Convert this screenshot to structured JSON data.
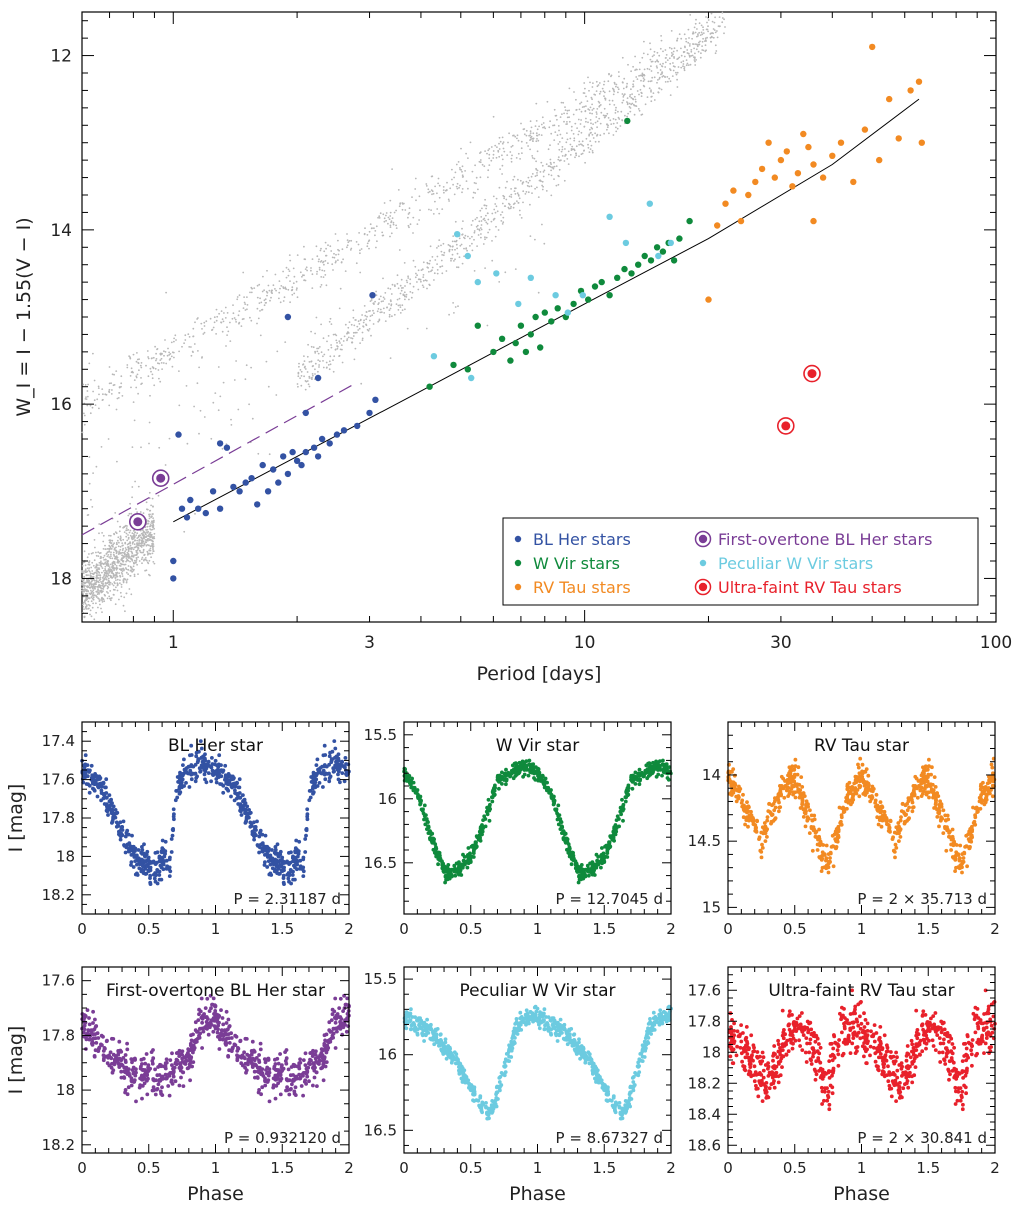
{
  "colors": {
    "field": "#b8b8b8",
    "blher": "#3352a3",
    "wvir": "#0f8a3c",
    "rvtau": "#f28a22",
    "fo_blher": "#7a3d96",
    "pec_wvir": "#6ccbe0",
    "ultra_faint": "#e8212b",
    "fit_line": "#000000"
  },
  "chart_data": [
    {
      "type": "scatter",
      "xscale": "log",
      "xlabel": "Period [days]",
      "ylabel": "W_I = I − 1.55(V − I)",
      "xlim": [
        0.6,
        100
      ],
      "ylim": [
        18.5,
        11.5
      ],
      "x_ticks": [
        1,
        3,
        10,
        30,
        100
      ],
      "x_tick_labels": [
        "1",
        "3",
        "10",
        "30",
        "100"
      ],
      "y_ticks": [
        12,
        14,
        16,
        18
      ],
      "y_tick_labels": [
        "12",
        "14",
        "16",
        "18"
      ],
      "legend_position": "bottom-right",
      "legend": [
        {
          "label": "BL Her stars",
          "color": "blher",
          "marker": "dot"
        },
        {
          "label": "W Vir stars",
          "color": "wvir",
          "marker": "dot"
        },
        {
          "label": "RV Tau stars",
          "color": "rvtau",
          "marker": "dot"
        },
        {
          "label": "First-overtone BL Her stars",
          "color": "fo_blher",
          "marker": "ring"
        },
        {
          "label": "Peculiar W Vir stars",
          "color": "pec_wvir",
          "marker": "dot"
        },
        {
          "label": "Ultra-faint RV Tau stars",
          "color": "ultra_faint",
          "marker": "ring"
        }
      ],
      "fit_line": [
        [
          1.0,
          17.35
        ],
        [
          2.0,
          16.6
        ],
        [
          4.0,
          15.85
        ],
        [
          10.0,
          14.85
        ],
        [
          20.0,
          14.1
        ],
        [
          40.0,
          13.25
        ],
        [
          65.0,
          12.5
        ]
      ],
      "fo_relation": {
        "x": [
          0.6,
          2.8
        ],
        "y": [
          17.5,
          15.75
        ],
        "style": "dashed"
      },
      "field_sequences": [
        {
          "name": "upper",
          "x0": 0.6,
          "x1": 22,
          "y0": 16.0,
          "y1": 11.6,
          "count": 900
        },
        {
          "name": "lower",
          "x0": 2.0,
          "x1": 21,
          "y0": 15.7,
          "y1": 11.7,
          "count": 850
        },
        {
          "name": "clump",
          "x0": 0.6,
          "x1": 0.9,
          "y0": 18.15,
          "y1": 17.45,
          "count": 1100
        }
      ],
      "series": {
        "blher": [
          [
            1.0,
            17.8
          ],
          [
            1.0,
            18.0
          ],
          [
            1.03,
            16.35
          ],
          [
            1.05,
            17.2
          ],
          [
            1.08,
            17.3
          ],
          [
            1.1,
            17.1
          ],
          [
            1.15,
            17.2
          ],
          [
            1.2,
            17.25
          ],
          [
            1.25,
            17.0
          ],
          [
            1.3,
            16.45
          ],
          [
            1.3,
            17.2
          ],
          [
            1.35,
            16.5
          ],
          [
            1.4,
            16.95
          ],
          [
            1.45,
            17.0
          ],
          [
            1.5,
            16.9
          ],
          [
            1.55,
            16.85
          ],
          [
            1.6,
            17.15
          ],
          [
            1.65,
            16.7
          ],
          [
            1.7,
            17.0
          ],
          [
            1.75,
            16.75
          ],
          [
            1.8,
            16.9
          ],
          [
            1.85,
            16.6
          ],
          [
            1.9,
            16.8
          ],
          [
            1.95,
            16.55
          ],
          [
            2.0,
            16.65
          ],
          [
            2.05,
            16.7
          ],
          [
            2.1,
            16.1
          ],
          [
            2.1,
            16.55
          ],
          [
            2.2,
            16.5
          ],
          [
            2.25,
            16.6
          ],
          [
            2.3,
            16.4
          ],
          [
            2.4,
            16.45
          ],
          [
            2.5,
            16.35
          ],
          [
            2.6,
            16.3
          ],
          [
            2.8,
            16.25
          ],
          [
            3.0,
            16.1
          ],
          [
            3.1,
            15.95
          ],
          [
            1.9,
            15.0
          ],
          [
            2.25,
            15.7
          ],
          [
            3.05,
            14.75
          ]
        ],
        "wvir": [
          [
            4.2,
            15.8
          ],
          [
            4.8,
            15.55
          ],
          [
            5.2,
            15.6
          ],
          [
            5.5,
            15.1
          ],
          [
            6.0,
            15.4
          ],
          [
            6.3,
            15.25
          ],
          [
            6.6,
            15.5
          ],
          [
            6.8,
            15.3
          ],
          [
            7.0,
            15.1
          ],
          [
            7.2,
            15.4
          ],
          [
            7.4,
            15.2
          ],
          [
            7.6,
            15.0
          ],
          [
            7.8,
            15.35
          ],
          [
            8.0,
            14.95
          ],
          [
            8.3,
            15.05
          ],
          [
            8.6,
            14.9
          ],
          [
            9.0,
            15.0
          ],
          [
            9.4,
            14.85
          ],
          [
            9.8,
            14.7
          ],
          [
            10.2,
            14.8
          ],
          [
            10.6,
            14.65
          ],
          [
            11.0,
            14.6
          ],
          [
            11.5,
            14.75
          ],
          [
            12.0,
            14.55
          ],
          [
            12.5,
            14.45
          ],
          [
            13.0,
            14.5
          ],
          [
            13.5,
            14.4
          ],
          [
            14.0,
            14.3
          ],
          [
            14.5,
            14.35
          ],
          [
            15.0,
            14.2
          ],
          [
            15.5,
            14.25
          ],
          [
            16.0,
            14.15
          ],
          [
            16.5,
            14.35
          ],
          [
            17.0,
            14.1
          ],
          [
            18.0,
            13.9
          ],
          [
            12.7,
            12.75
          ]
        ],
        "rvtau": [
          [
            20.0,
            14.8
          ],
          [
            21.0,
            13.95
          ],
          [
            22.0,
            13.7
          ],
          [
            23.0,
            13.55
          ],
          [
            24.0,
            13.9
          ],
          [
            25.0,
            13.6
          ],
          [
            26.0,
            13.45
          ],
          [
            27.0,
            13.3
          ],
          [
            28.0,
            13.0
          ],
          [
            29.0,
            13.4
          ],
          [
            30.0,
            13.2
          ],
          [
            31.0,
            13.1
          ],
          [
            32.0,
            13.5
          ],
          [
            33.0,
            13.35
          ],
          [
            34.0,
            12.9
          ],
          [
            35.0,
            13.05
          ],
          [
            36.0,
            13.25
          ],
          [
            38.0,
            13.4
          ],
          [
            40.0,
            13.15
          ],
          [
            42.0,
            13.0
          ],
          [
            45.0,
            13.45
          ],
          [
            48.0,
            12.85
          ],
          [
            50.0,
            11.9
          ],
          [
            52.0,
            13.2
          ],
          [
            55.0,
            12.5
          ],
          [
            58.0,
            12.95
          ],
          [
            62.0,
            12.4
          ],
          [
            65.0,
            12.3
          ],
          [
            66.0,
            13.0
          ],
          [
            36.0,
            13.9
          ]
        ],
        "fo_blher": [
          [
            0.932,
            16.85
          ],
          [
            0.82,
            17.35
          ]
        ],
        "pec_wvir": [
          [
            4.3,
            15.45
          ],
          [
            4.9,
            14.05
          ],
          [
            5.3,
            15.7
          ],
          [
            5.5,
            14.6
          ],
          [
            6.1,
            14.5
          ],
          [
            6.9,
            14.85
          ],
          [
            7.4,
            14.55
          ],
          [
            8.5,
            14.75
          ],
          [
            9.1,
            14.95
          ],
          [
            9.9,
            14.75
          ],
          [
            11.5,
            13.85
          ],
          [
            12.6,
            14.15
          ],
          [
            14.4,
            13.7
          ],
          [
            15.1,
            14.3
          ],
          [
            16.2,
            14.15
          ],
          [
            5.2,
            14.3
          ]
        ],
        "ultra_faint": [
          [
            30.841,
            16.25
          ],
          [
            35.713,
            15.65
          ]
        ]
      }
    },
    {
      "type": "scatter",
      "title": "BL Her star",
      "color": "blher",
      "xlim": [
        0,
        2
      ],
      "ylim": [
        18.3,
        17.3
      ],
      "y_ticks": [
        17.4,
        17.6,
        17.8,
        18,
        18.2
      ],
      "y_tick_labels": [
        "17.4",
        "17.6",
        "17.8",
        "18",
        "18.2"
      ],
      "x_ticks": [
        0,
        0.5,
        1,
        1.5,
        2
      ],
      "x_tick_labels": [
        "0",
        "0.5",
        "1",
        "1.5",
        "2"
      ],
      "period_label": "P = 2.31187 d",
      "ylabel": "I [mag]",
      "curve": {
        "phase": [
          0,
          0.1,
          0.2,
          0.3,
          0.4,
          0.5,
          0.55,
          0.62,
          0.65,
          0.68,
          0.72,
          0.8,
          0.9,
          1.0
        ],
        "mag": [
          17.55,
          17.6,
          17.72,
          17.88,
          18.0,
          18.05,
          18.06,
          18.0,
          18.1,
          17.85,
          17.62,
          17.55,
          17.52,
          17.55
        ]
      },
      "scatter_mag": 0.04,
      "points_per_cycle": 420
    },
    {
      "type": "scatter",
      "title": "W Vir star",
      "color": "wvir",
      "xlim": [
        0,
        2
      ],
      "ylim": [
        16.9,
        15.4
      ],
      "y_ticks": [
        15.5,
        16,
        16.5
      ],
      "y_tick_labels": [
        "15.5",
        "16",
        "16.5"
      ],
      "x_ticks": [
        0,
        0.5,
        1,
        1.5,
        2
      ],
      "x_tick_labels": [
        "0",
        "0.5",
        "1",
        "1.5",
        "2"
      ],
      "period_label": "P = 12.7045 d",
      "curve": {
        "phase": [
          0,
          0.1,
          0.2,
          0.3,
          0.35,
          0.4,
          0.5,
          0.6,
          0.7,
          0.8,
          0.9,
          1.0
        ],
        "mag": [
          15.8,
          15.95,
          16.3,
          16.55,
          16.58,
          16.55,
          16.45,
          16.2,
          15.85,
          15.8,
          15.75,
          15.8
        ]
      },
      "scatter_mag": 0.03,
      "points_per_cycle": 420
    },
    {
      "type": "scatter",
      "title": "RV Tau star",
      "color": "rvtau",
      "xlim": [
        0,
        2
      ],
      "ylim": [
        15.05,
        13.6
      ],
      "y_ticks": [
        14,
        14.5,
        15
      ],
      "y_tick_labels": [
        "14",
        "14.5",
        "15"
      ],
      "x_ticks": [
        0,
        0.5,
        1,
        1.5,
        2
      ],
      "x_tick_labels": [
        "0",
        "0.5",
        "1",
        "1.5",
        "2"
      ],
      "period_label": "P = 2 × 35.713 d",
      "curve": {
        "phase": [
          0,
          0.1,
          0.25,
          0.4,
          0.5,
          0.6,
          0.75,
          0.9,
          1.0
        ],
        "mag": [
          14.0,
          14.2,
          14.5,
          14.1,
          14.0,
          14.3,
          14.7,
          14.15,
          14.0
        ]
      },
      "scatter_mag": 0.06,
      "points_per_cycle": 420
    },
    {
      "type": "scatter",
      "title": "First-overtone BL Her star",
      "color": "fo_blher",
      "xlim": [
        0,
        2
      ],
      "ylim": [
        18.23,
        17.55
      ],
      "y_ticks": [
        17.6,
        17.8,
        18,
        18.2
      ],
      "y_tick_labels": [
        "17.6",
        "17.8",
        "18",
        "18.2"
      ],
      "x_ticks": [
        0,
        0.5,
        1,
        1.5,
        2
      ],
      "x_tick_labels": [
        "0",
        "0.5",
        "1",
        "1.5",
        "2"
      ],
      "period_label": "P = 0.932120 d",
      "xlabel": "Phase",
      "ylabel": "I [mag]",
      "curve": {
        "phase": [
          0,
          0.2,
          0.4,
          0.6,
          0.8,
          0.9,
          1.0
        ],
        "mag": [
          17.75,
          17.87,
          17.95,
          17.95,
          17.88,
          17.75,
          17.72
        ]
      },
      "scatter_mag": 0.035,
      "points_per_cycle": 400
    },
    {
      "type": "scatter",
      "title": "Peculiar W Vir star",
      "color": "pec_wvir",
      "xlim": [
        0,
        2
      ],
      "ylim": [
        16.65,
        15.42
      ],
      "y_ticks": [
        15.5,
        16,
        16.5
      ],
      "y_tick_labels": [
        "15.5",
        "16",
        "16.5"
      ],
      "x_ticks": [
        0,
        0.5,
        1,
        1.5,
        2
      ],
      "x_tick_labels": [
        "0",
        "0.5",
        "1",
        "1.5",
        "2"
      ],
      "period_label": "P = 8.67327 d",
      "xlabel": "Phase",
      "curve": {
        "phase": [
          0,
          0.2,
          0.4,
          0.55,
          0.65,
          0.75,
          0.85,
          1.0
        ],
        "mag": [
          15.75,
          15.85,
          16.05,
          16.3,
          16.4,
          16.1,
          15.8,
          15.73
        ]
      },
      "scatter_mag": 0.03,
      "points_per_cycle": 420
    },
    {
      "type": "scatter",
      "title": "Ultra-faint RV Tau star",
      "color": "ultra_faint",
      "xlim": [
        0,
        2
      ],
      "ylim": [
        18.65,
        17.45
      ],
      "y_ticks": [
        17.6,
        17.8,
        18,
        18.2,
        18.4,
        18.6
      ],
      "y_tick_labels": [
        "17.6",
        "17.8",
        "18",
        "18.2",
        "18.4",
        "18.6"
      ],
      "x_ticks": [
        0,
        0.5,
        1,
        1.5,
        2
      ],
      "x_tick_labels": [
        "0",
        "0.5",
        "1",
        "1.5",
        "2"
      ],
      "period_label": "P = 2 × 30.841 d",
      "xlabel": "Phase",
      "curve": {
        "phase": [
          0,
          0.1,
          0.2,
          0.3,
          0.45,
          0.55,
          0.65,
          0.75,
          0.85,
          1.0
        ],
        "mag": [
          17.9,
          17.95,
          18.1,
          18.2,
          17.85,
          17.85,
          18.0,
          18.25,
          17.85,
          17.82
        ]
      },
      "scatter_mag": 0.08,
      "points_per_cycle": 420
    }
  ]
}
